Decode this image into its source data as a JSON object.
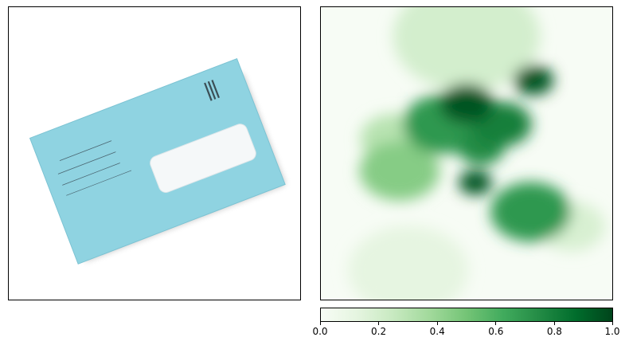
{
  "chart_data": [
    {
      "type": "image",
      "description": "",
      "axes": {
        "xticks": [],
        "yticks": []
      }
    },
    {
      "type": "heatmap",
      "colormap": "Greens",
      "axes": {
        "xticks": [],
        "yticks": []
      },
      "colorbar": {
        "orientation": "horizontal",
        "range": [
          0.0,
          1.0
        ],
        "ticks": [
          "0.0",
          "0.2",
          "0.4",
          "0.6",
          "0.8",
          "1.0"
        ]
      },
      "hotspots": [
        {
          "cx": 0.73,
          "cy": 0.25,
          "r": 0.06,
          "v": 0.95
        },
        {
          "cx": 0.5,
          "cy": 0.33,
          "r": 0.08,
          "v": 0.95
        },
        {
          "cx": 0.42,
          "cy": 0.4,
          "r": 0.12,
          "v": 0.7
        },
        {
          "cx": 0.62,
          "cy": 0.4,
          "r": 0.09,
          "v": 0.8
        },
        {
          "cx": 0.55,
          "cy": 0.48,
          "r": 0.07,
          "v": 0.75
        },
        {
          "cx": 0.53,
          "cy": 0.6,
          "r": 0.05,
          "v": 0.95
        },
        {
          "cx": 0.27,
          "cy": 0.56,
          "r": 0.12,
          "v": 0.45
        },
        {
          "cx": 0.25,
          "cy": 0.45,
          "r": 0.1,
          "v": 0.3
        },
        {
          "cx": 0.72,
          "cy": 0.7,
          "r": 0.12,
          "v": 0.7
        },
        {
          "cx": 0.5,
          "cy": 0.1,
          "r": 0.22,
          "v": 0.2
        },
        {
          "cx": 0.86,
          "cy": 0.75,
          "r": 0.1,
          "v": 0.18
        },
        {
          "cx": 0.3,
          "cy": 0.9,
          "r": 0.18,
          "v": 0.12
        }
      ]
    }
  ],
  "panels": {
    "left_label": "",
    "right_label": ""
  },
  "colors": {
    "heat_low": "#f7fcf5",
    "heat_mid": "#74c476",
    "heat_high": "#00441b",
    "envelope": "#8fd3e1"
  }
}
